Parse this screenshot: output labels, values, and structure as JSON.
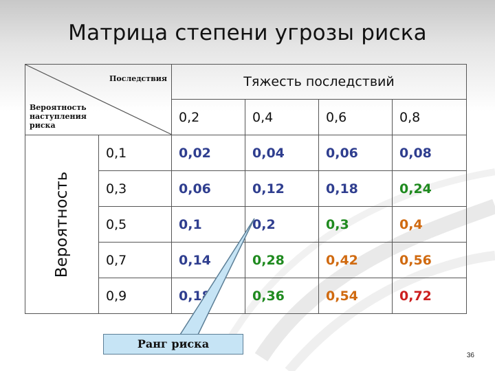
{
  "title": "Матрица степени угрозы риска",
  "header": {
    "consequences_label": "Последствия",
    "probability_label": "Вероятность наступления риска",
    "severity_title": "Тяжесть последствий",
    "vertical_label": "Вероятность"
  },
  "severity_values": [
    "0,2",
    "0,4",
    "0,6",
    "0,8"
  ],
  "rows": [
    {
      "p": "0,1",
      "cells": [
        "0,02",
        "0,04",
        "0,06",
        "0,08"
      ],
      "colors": [
        "#2f3e8f",
        "#2f3e8f",
        "#2f3e8f",
        "#2f3e8f"
      ]
    },
    {
      "p": "0,3",
      "cells": [
        "0,06",
        "0,12",
        "0,18",
        "0,24"
      ],
      "colors": [
        "#2f3e8f",
        "#2f3e8f",
        "#2f3e8f",
        "#1f8a1f"
      ]
    },
    {
      "p": "0,5",
      "cells": [
        "0,1",
        "0,2",
        "0,3",
        "0,4"
      ],
      "colors": [
        "#2f3e8f",
        "#2f3e8f",
        "#1f8a1f",
        "#d06a10"
      ]
    },
    {
      "p": "0,7",
      "cells": [
        "0,14",
        "0,28",
        "0,42",
        "0,56"
      ],
      "colors": [
        "#2f3e8f",
        "#1f8a1f",
        "#d06a10",
        "#d06a10"
      ]
    },
    {
      "p": "0,9",
      "cells": [
        "0,18",
        "0,36",
        "0,54",
        "0,72"
      ],
      "colors": [
        "#2f3e8f",
        "#1f8a1f",
        "#d06a10",
        "#cc1f1f"
      ]
    }
  ],
  "callout": "Ранг риска",
  "page_number": "36"
}
